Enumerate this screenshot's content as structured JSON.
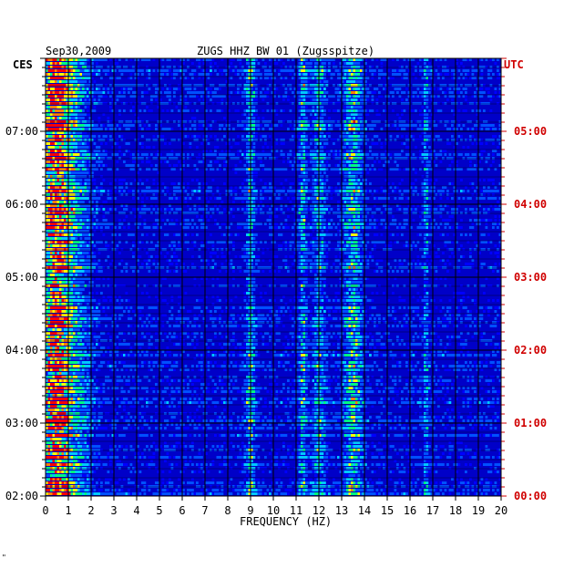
{
  "chart_data": {
    "type": "heatmap",
    "date": "Sep30,2009",
    "title": "ZUGS HHZ BW 01 (Zugsspitze)",
    "xlabel": "FREQUENCY (HZ)",
    "xlim": [
      0,
      20
    ],
    "x_ticks": [
      "0",
      "1",
      "2",
      "3",
      "4",
      "5",
      "6",
      "7",
      "8",
      "9",
      "10",
      "11",
      "12",
      "13",
      "14",
      "15",
      "16",
      "17",
      "18",
      "19",
      "20"
    ],
    "left_axis_label": "CES",
    "right_axis_label": "UTC",
    "left_time_ticks": [
      "07:00",
      "06:00",
      "05:00",
      "04:00",
      "03:00",
      "02:00"
    ],
    "right_time_ticks": [
      "05:00",
      "04:00",
      "03:00",
      "02:00",
      "01:00",
      "00:00"
    ],
    "grid": true,
    "colormap": [
      "#0000a0",
      "#0000ff",
      "#0050ff",
      "#00c8ff",
      "#00ff80",
      "#ffff00",
      "#ff8000",
      "#ff0000"
    ],
    "colors": {
      "background": "#0000c8",
      "grid": "#000000",
      "utc_labels": "#d00000",
      "ces_labels": "#000000"
    },
    "energy_bands": [
      {
        "f_center": 0.4,
        "f_width": 0.6,
        "strength": 0.85
      },
      {
        "f_center": 1.2,
        "f_width": 0.8,
        "strength": 0.35
      },
      {
        "f_center": 9.0,
        "f_width": 0.2,
        "strength": 0.35
      },
      {
        "f_center": 11.3,
        "f_width": 0.15,
        "strength": 0.4
      },
      {
        "f_center": 12.0,
        "f_width": 0.3,
        "strength": 0.3
      },
      {
        "f_center": 13.5,
        "f_width": 0.4,
        "strength": 0.45
      },
      {
        "f_center": 16.7,
        "f_width": 0.1,
        "strength": 0.3
      }
    ]
  },
  "footer_mark": "\""
}
